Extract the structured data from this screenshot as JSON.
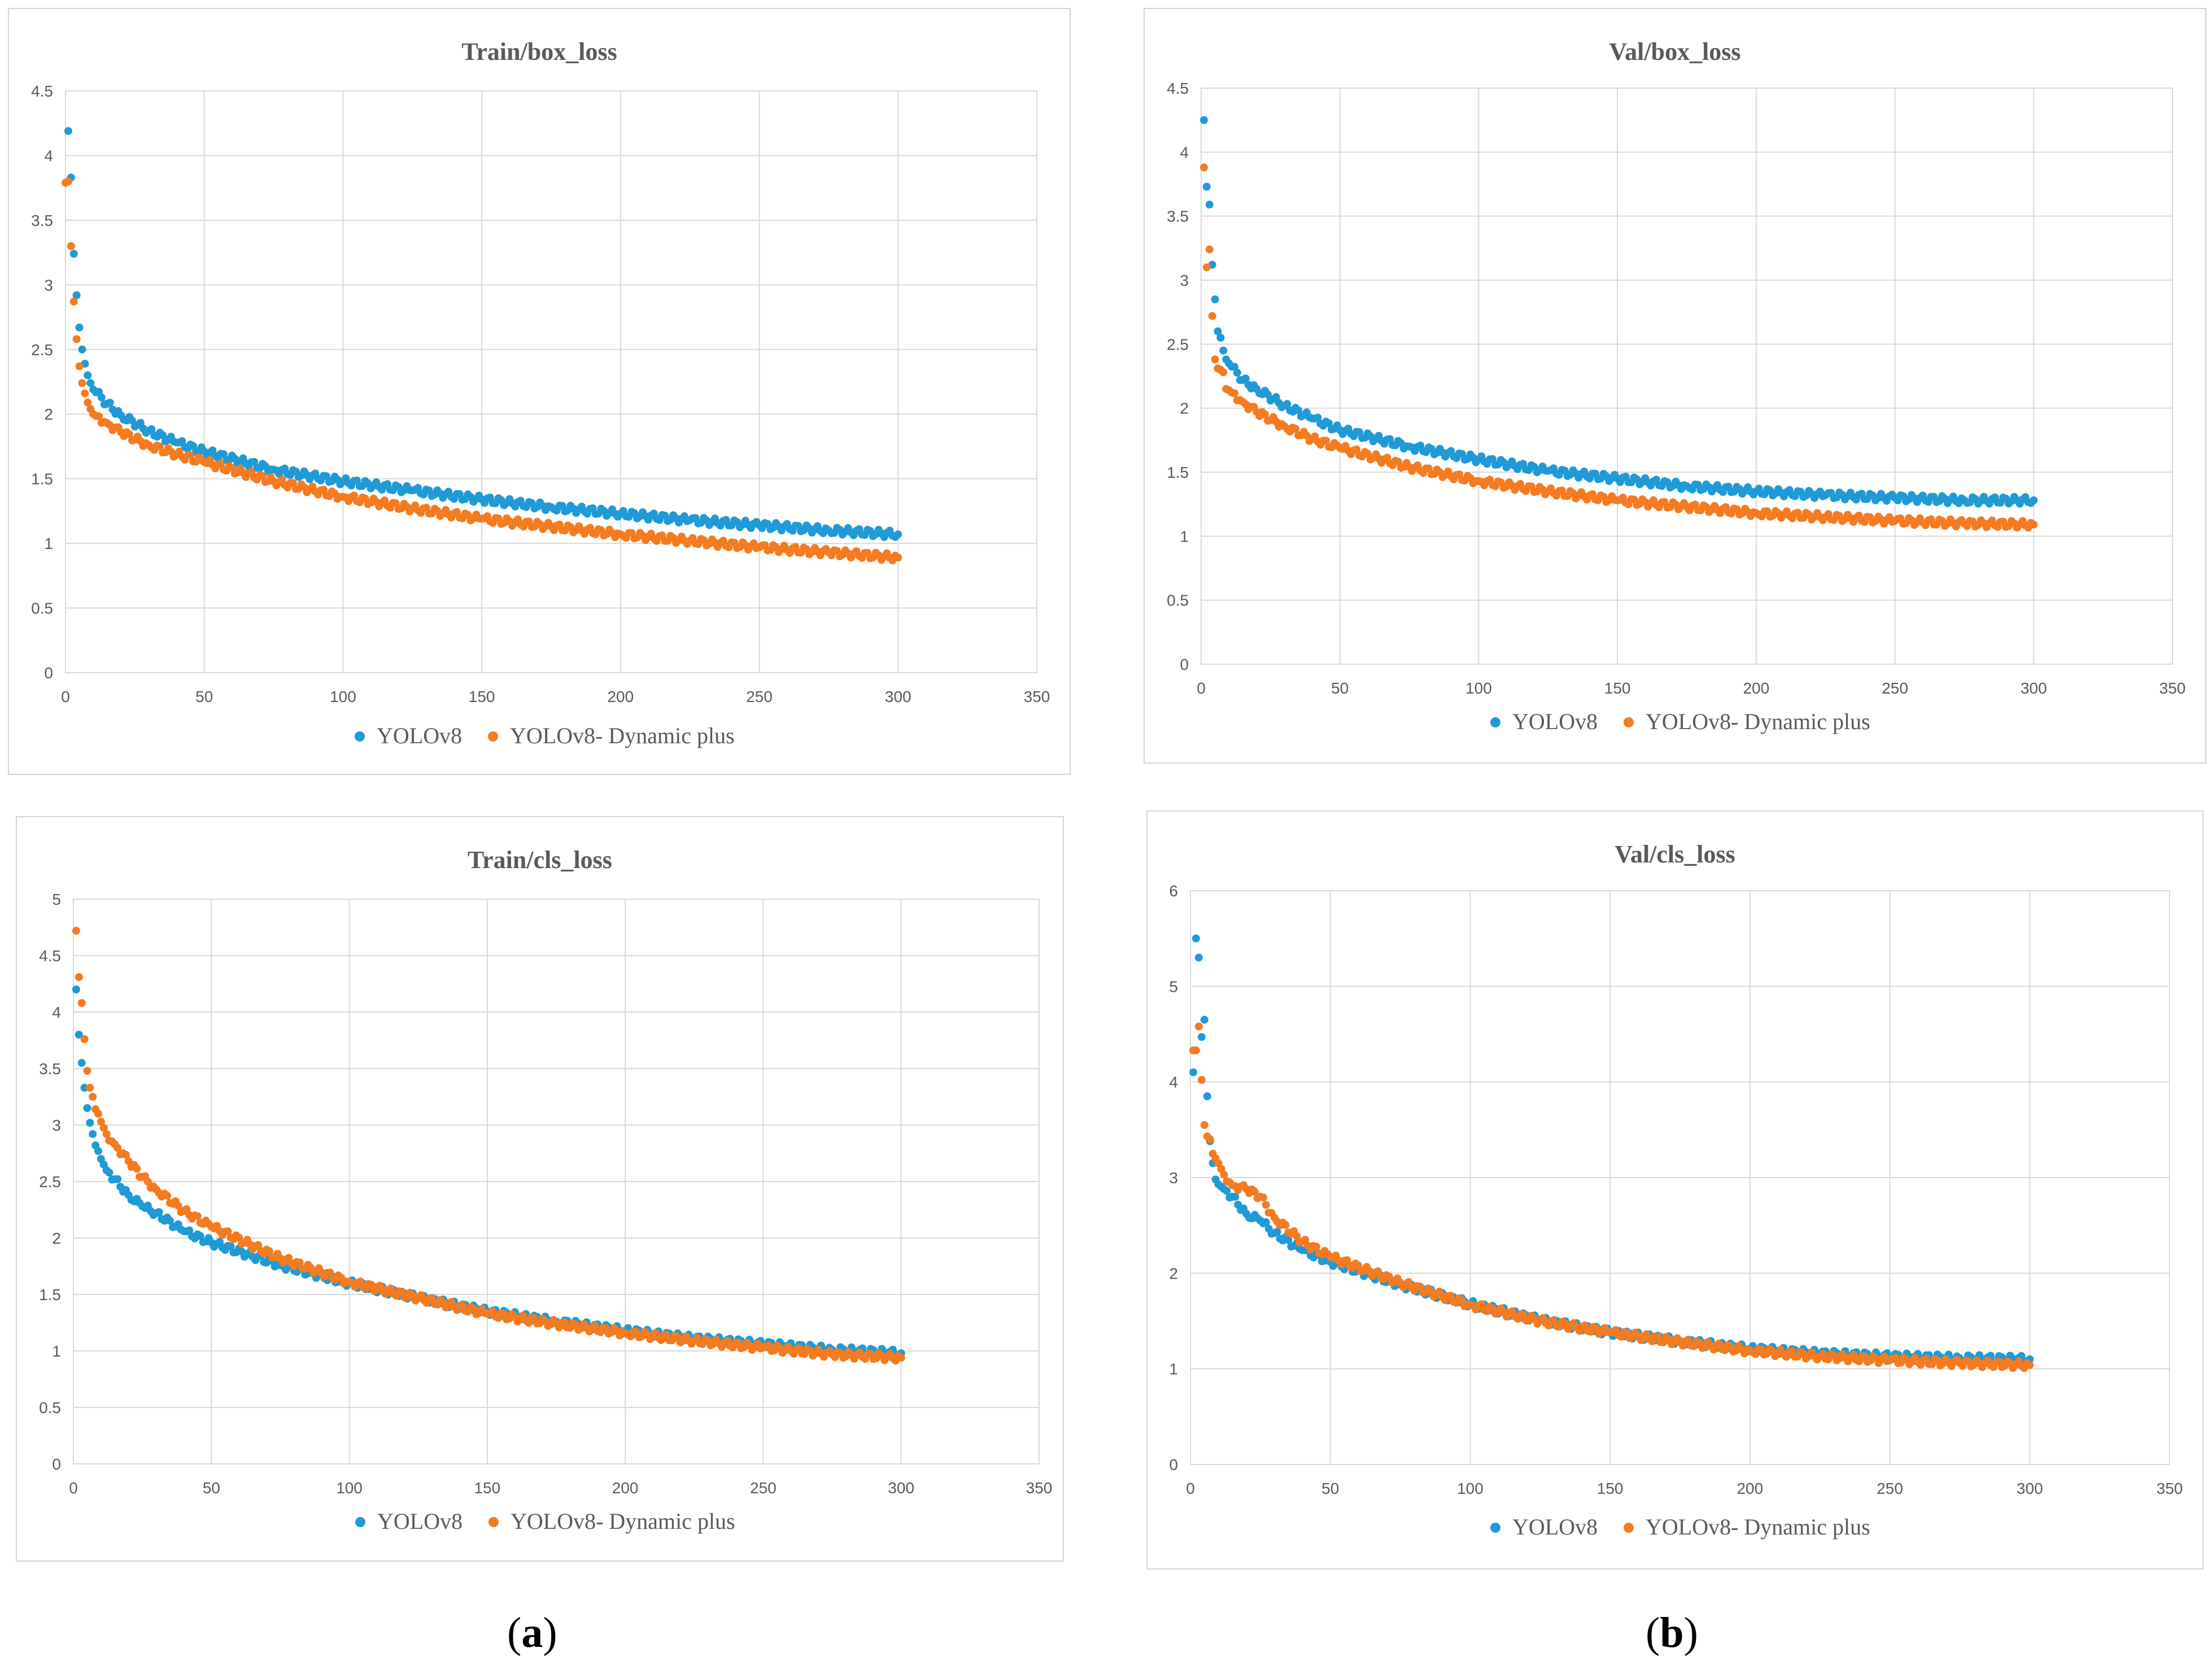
{
  "figure": {
    "caption_left": {
      "open": "(",
      "letter": "a",
      "close": ")"
    },
    "caption_right": {
      "open": "(",
      "letter": "b",
      "close": ")"
    }
  },
  "colors": {
    "yolov8": "#1f9ad6",
    "dynamic": "#f47b20",
    "grid": "#d9d9d9",
    "axis_text": "#595959",
    "title": "#595959"
  },
  "chart_data": [
    {
      "id": "train-box",
      "type": "scatter",
      "title": "Train/box_loss",
      "xlim": [
        0,
        350
      ],
      "xticks": [
        0,
        50,
        100,
        150,
        200,
        250,
        300,
        350
      ],
      "ylim": [
        0,
        4.5
      ],
      "yticks": [
        0,
        0.5,
        1,
        1.5,
        2,
        2.5,
        3,
        3.5,
        4,
        4.5
      ],
      "yticklabels": [
        "0",
        "0.5",
        "1",
        "1.5",
        "2",
        "2.5",
        "3",
        "3.5",
        "4",
        "4.5"
      ],
      "series": [
        {
          "name": "YOLOv8",
          "color": "#1f9ad6",
          "points": [
            [
              1,
              4.19
            ],
            [
              2,
              3.83
            ],
            [
              3,
              3.24
            ],
            [
              4,
              2.92
            ],
            [
              5,
              2.67
            ],
            [
              6,
              2.5
            ],
            [
              7,
              2.39
            ],
            [
              8,
              2.3
            ],
            [
              9,
              2.24
            ],
            [
              10,
              2.19
            ],
            [
              15,
              2.08
            ],
            [
              20,
              1.99
            ],
            [
              30,
              1.87
            ],
            [
              40,
              1.78
            ],
            [
              50,
              1.71
            ],
            [
              75,
              1.57
            ],
            [
              100,
              1.48
            ],
            [
              125,
              1.41
            ],
            [
              150,
              1.34
            ],
            [
              175,
              1.28
            ],
            [
              200,
              1.23
            ],
            [
              225,
              1.18
            ],
            [
              250,
              1.14
            ],
            [
              275,
              1.1
            ],
            [
              300,
              1.07
            ]
          ]
        },
        {
          "name": "YOLOv8- Dynamic plus",
          "color": "#f47b20",
          "points": [
            [
              0,
              3.79
            ],
            [
              1,
              3.8
            ],
            [
              2,
              3.3
            ],
            [
              3,
              2.87
            ],
            [
              4,
              2.58
            ],
            [
              5,
              2.37
            ],
            [
              6,
              2.24
            ],
            [
              7,
              2.16
            ],
            [
              8,
              2.09
            ],
            [
              9,
              2.04
            ],
            [
              10,
              2.0
            ],
            [
              15,
              1.93
            ],
            [
              20,
              1.86
            ],
            [
              30,
              1.76
            ],
            [
              40,
              1.69
            ],
            [
              50,
              1.63
            ],
            [
              75,
              1.48
            ],
            [
              100,
              1.36
            ],
            [
              125,
              1.27
            ],
            [
              150,
              1.19
            ],
            [
              175,
              1.13
            ],
            [
              200,
              1.07
            ],
            [
              225,
              1.02
            ],
            [
              250,
              0.97
            ],
            [
              275,
              0.93
            ],
            [
              300,
              0.89
            ]
          ]
        }
      ]
    },
    {
      "id": "val-box",
      "type": "scatter",
      "title": "Val/box_loss",
      "xlim": [
        0,
        350
      ],
      "xticks": [
        0,
        50,
        100,
        150,
        200,
        250,
        300,
        350
      ],
      "ylim": [
        0,
        4.5
      ],
      "yticks": [
        0,
        0.5,
        1,
        1.5,
        2,
        2.5,
        3,
        3.5,
        4,
        4.5
      ],
      "yticklabels": [
        "0",
        "0.5",
        "1",
        "1.5",
        "2",
        "2.5",
        "3",
        "3.5",
        "4",
        "4.5"
      ],
      "series": [
        {
          "name": "YOLOv8",
          "color": "#1f9ad6",
          "points": [
            [
              1,
              4.25
            ],
            [
              2,
              3.73
            ],
            [
              3,
              3.59
            ],
            [
              4,
              3.12
            ],
            [
              5,
              2.85
            ],
            [
              6,
              2.6
            ],
            [
              7,
              2.55
            ],
            [
              8,
              2.45
            ],
            [
              9,
              2.38
            ],
            [
              10,
              2.35
            ],
            [
              15,
              2.22
            ],
            [
              20,
              2.15
            ],
            [
              30,
              2.02
            ],
            [
              40,
              1.92
            ],
            [
              50,
              1.83
            ],
            [
              75,
              1.7
            ],
            [
              100,
              1.6
            ],
            [
              125,
              1.51
            ],
            [
              150,
              1.45
            ],
            [
              175,
              1.39
            ],
            [
              200,
              1.35
            ],
            [
              225,
              1.32
            ],
            [
              250,
              1.3
            ],
            [
              275,
              1.28
            ],
            [
              300,
              1.28
            ]
          ]
        },
        {
          "name": "YOLOv8- Dynamic plus",
          "color": "#f47b20",
          "points": [
            [
              1,
              3.88
            ],
            [
              2,
              3.1
            ],
            [
              3,
              3.24
            ],
            [
              4,
              2.72
            ],
            [
              5,
              2.38
            ],
            [
              6,
              2.31
            ],
            [
              7,
              2.3
            ],
            [
              8,
              2.28
            ],
            [
              9,
              2.15
            ],
            [
              10,
              2.14
            ],
            [
              15,
              2.05
            ],
            [
              20,
              1.97
            ],
            [
              30,
              1.86
            ],
            [
              40,
              1.76
            ],
            [
              50,
              1.69
            ],
            [
              75,
              1.54
            ],
            [
              100,
              1.43
            ],
            [
              125,
              1.35
            ],
            [
              150,
              1.28
            ],
            [
              175,
              1.23
            ],
            [
              200,
              1.18
            ],
            [
              225,
              1.15
            ],
            [
              250,
              1.12
            ],
            [
              275,
              1.1
            ],
            [
              300,
              1.09
            ]
          ]
        }
      ]
    },
    {
      "id": "train-cls",
      "type": "scatter",
      "title": "Train/cls_loss",
      "xlim": [
        0,
        350
      ],
      "xticks": [
        0,
        50,
        100,
        150,
        200,
        250,
        300,
        350
      ],
      "ylim": [
        0,
        5
      ],
      "yticks": [
        0,
        0.5,
        1,
        1.5,
        2,
        2.5,
        3,
        3.5,
        4,
        4.5,
        5
      ],
      "yticklabels": [
        "0",
        "0.5",
        "1",
        "1.5",
        "2",
        "2.5",
        "3",
        "3.5",
        "4",
        "4.5",
        "5"
      ],
      "series": [
        {
          "name": "YOLOv8",
          "color": "#1f9ad6",
          "points": [
            [
              1,
              4.2
            ],
            [
              2,
              3.8
            ],
            [
              3,
              3.55
            ],
            [
              4,
              3.33
            ],
            [
              5,
              3.15
            ],
            [
              6,
              3.02
            ],
            [
              7,
              2.92
            ],
            [
              8,
              2.82
            ],
            [
              9,
              2.77
            ],
            [
              10,
              2.7
            ],
            [
              12,
              2.6
            ],
            [
              15,
              2.52
            ],
            [
              20,
              2.38
            ],
            [
              25,
              2.28
            ],
            [
              30,
              2.22
            ],
            [
              40,
              2.06
            ],
            [
              50,
              1.96
            ],
            [
              75,
              1.76
            ],
            [
              100,
              1.6
            ],
            [
              125,
              1.47
            ],
            [
              150,
              1.35
            ],
            [
              175,
              1.26
            ],
            [
              200,
              1.18
            ],
            [
              225,
              1.11
            ],
            [
              250,
              1.06
            ],
            [
              275,
              1.01
            ],
            [
              300,
              0.98
            ]
          ]
        },
        {
          "name": "YOLOv8- Dynamic plus",
          "color": "#f47b20",
          "points": [
            [
              1,
              4.72
            ],
            [
              2,
              4.31
            ],
            [
              3,
              4.08
            ],
            [
              4,
              3.76
            ],
            [
              5,
              3.48
            ],
            [
              6,
              3.33
            ],
            [
              7,
              3.25
            ],
            [
              8,
              3.14
            ],
            [
              9,
              3.1
            ],
            [
              10,
              3.03
            ],
            [
              12,
              2.92
            ],
            [
              15,
              2.83
            ],
            [
              20,
              2.68
            ],
            [
              25,
              2.54
            ],
            [
              30,
              2.43
            ],
            [
              40,
              2.24
            ],
            [
              50,
              2.1
            ],
            [
              75,
              1.82
            ],
            [
              100,
              1.61
            ],
            [
              125,
              1.47
            ],
            [
              150,
              1.33
            ],
            [
              175,
              1.24
            ],
            [
              200,
              1.16
            ],
            [
              225,
              1.09
            ],
            [
              250,
              1.03
            ],
            [
              275,
              0.97
            ],
            [
              300,
              0.94
            ]
          ]
        }
      ]
    },
    {
      "id": "val-cls",
      "type": "scatter",
      "title": "Val/cls_loss",
      "xlim": [
        0,
        350
      ],
      "xticks": [
        0,
        50,
        100,
        150,
        200,
        250,
        300,
        350
      ],
      "ylim": [
        0,
        6
      ],
      "yticks": [
        0,
        1,
        2,
        3,
        4,
        5,
        6
      ],
      "yticklabels": [
        "0",
        "1",
        "2",
        "3",
        "4",
        "5",
        "6"
      ],
      "series": [
        {
          "name": "YOLOv8",
          "color": "#1f9ad6",
          "points": [
            [
              1,
              4.1
            ],
            [
              2,
              5.5
            ],
            [
              3,
              5.3
            ],
            [
              4,
              4.47
            ],
            [
              5,
              4.65
            ],
            [
              6,
              3.85
            ],
            [
              7,
              3.38
            ],
            [
              8,
              3.15
            ],
            [
              9,
              2.98
            ],
            [
              10,
              2.93
            ],
            [
              12,
              2.88
            ],
            [
              15,
              2.8
            ],
            [
              20,
              2.62
            ],
            [
              25,
              2.55
            ],
            [
              30,
              2.42
            ],
            [
              40,
              2.24
            ],
            [
              50,
              2.12
            ],
            [
              75,
              1.88
            ],
            [
              100,
              1.68
            ],
            [
              125,
              1.51
            ],
            [
              150,
              1.38
            ],
            [
              175,
              1.29
            ],
            [
              200,
              1.21
            ],
            [
              225,
              1.16
            ],
            [
              250,
              1.13
            ],
            [
              275,
              1.11
            ],
            [
              300,
              1.1
            ]
          ]
        },
        {
          "name": "YOLOv8- Dynamic plus",
          "color": "#f47b20",
          "points": [
            [
              1,
              4.33
            ],
            [
              2,
              4.33
            ],
            [
              3,
              4.58
            ],
            [
              4,
              4.02
            ],
            [
              5,
              3.55
            ],
            [
              6,
              3.43
            ],
            [
              7,
              3.4
            ],
            [
              8,
              3.25
            ],
            [
              9,
              3.2
            ],
            [
              10,
              3.15
            ],
            [
              12,
              3.03
            ],
            [
              15,
              2.92
            ],
            [
              20,
              2.88
            ],
            [
              25,
              2.8
            ],
            [
              30,
              2.58
            ],
            [
              40,
              2.33
            ],
            [
              50,
              2.17
            ],
            [
              75,
              1.9
            ],
            [
              100,
              1.67
            ],
            [
              125,
              1.5
            ],
            [
              150,
              1.38
            ],
            [
              175,
              1.28
            ],
            [
              200,
              1.19
            ],
            [
              225,
              1.13
            ],
            [
              250,
              1.09
            ],
            [
              275,
              1.06
            ],
            [
              300,
              1.04
            ]
          ]
        }
      ]
    }
  ]
}
